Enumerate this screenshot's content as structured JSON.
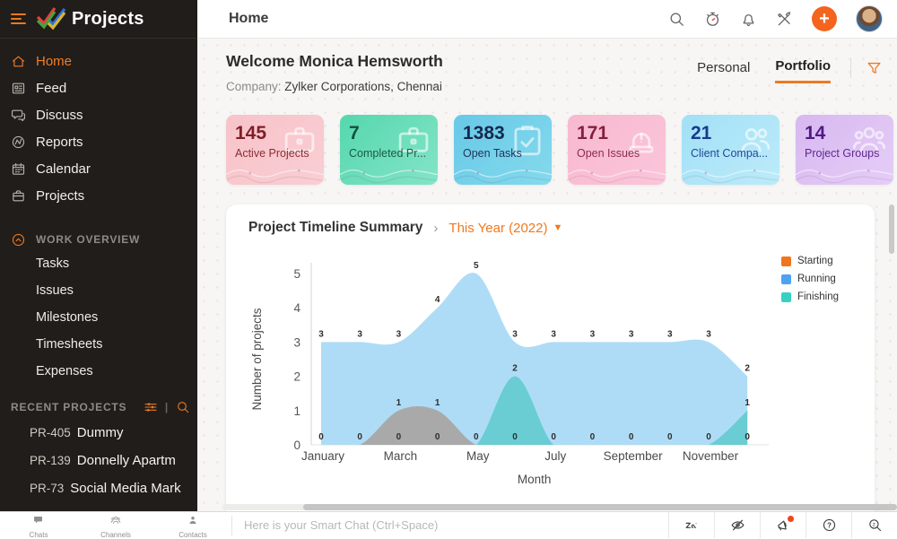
{
  "sidebar": {
    "logo_text": "Projects",
    "nav_items": [
      {
        "label": "Home",
        "icon": "home-icon",
        "active": true
      },
      {
        "label": "Feed",
        "icon": "feed-icon",
        "active": false
      },
      {
        "label": "Discuss",
        "icon": "discuss-icon",
        "active": false
      },
      {
        "label": "Reports",
        "icon": "reports-icon",
        "active": false
      },
      {
        "label": "Calendar",
        "icon": "calendar-icon",
        "active": false
      },
      {
        "label": "Projects",
        "icon": "projects-icon",
        "active": false
      }
    ],
    "work_overview": {
      "title": "WORK OVERVIEW",
      "icon": "chevron-circle-up-icon",
      "items": [
        "Tasks",
        "Issues",
        "Milestones",
        "Timesheets",
        "Expenses"
      ]
    },
    "recent_projects": {
      "title": "RECENT PROJECTS",
      "icons": [
        "sliders-icon",
        "search-icon"
      ],
      "projects": [
        {
          "code": "PR-405",
          "name": "Dummy"
        },
        {
          "code": "PR-139",
          "name": "Donnelly Apartm"
        },
        {
          "code": "PR-73",
          "name": "Social Media Mark"
        }
      ]
    }
  },
  "topbar": {
    "title": "Home",
    "icons": [
      "search-icon",
      "timer-icon",
      "bell-icon",
      "tools-icon"
    ],
    "add_button_label": "+"
  },
  "welcome": {
    "greeting": "Welcome Monica Hemsworth",
    "company_label": "Company:",
    "company_value": " Zylker Corporations, Chennai"
  },
  "view_tabs": {
    "personal": "Personal",
    "portfolio": "Portfolio",
    "selected": "Portfolio",
    "filter_icon": "funnel-icon"
  },
  "stat_cards": [
    {
      "value": "145",
      "label": "Active Projects",
      "icon": "briefcase-icon",
      "bg1": "#f7c3c9",
      "bg2": "#f9ced3",
      "text": "#7e1f26"
    },
    {
      "value": "7",
      "label": "Completed Pr...",
      "icon": "briefcase-icon",
      "bg1": "#55d7ad",
      "bg2": "#84e4c7",
      "text": "#14503a"
    },
    {
      "value": "1383",
      "label": "Open Tasks",
      "icon": "clipboard-check-icon",
      "bg1": "#68c8e7",
      "bg2": "#84daec",
      "text": "#16284f"
    },
    {
      "value": "171",
      "label": "Open Issues",
      "icon": "siren-icon",
      "bg1": "#f8b9cf",
      "bg2": "#fac5da",
      "text": "#831f3f"
    },
    {
      "value": "21",
      "label": "Client Compa...",
      "icon": "people-two-icon",
      "bg1": "#a2e0f6",
      "bg2": "#bcebfa",
      "text": "#173b8c"
    },
    {
      "value": "14",
      "label": "Project Groups",
      "icon": "people-group-icon",
      "bg1": "#d7b8f0",
      "bg2": "#e5cdf7",
      "text": "#531a85"
    }
  ],
  "chart_card": {
    "title": "Project Timeline Summary",
    "breadcrumb_chevron": "›",
    "range_label": "This Year (2022)",
    "range_caret": "▼"
  },
  "chart_data": {
    "type": "area",
    "title": "Project Timeline Summary",
    "x": [
      "January",
      "February",
      "March",
      "April",
      "May",
      "June",
      "July",
      "August",
      "September",
      "October",
      "November",
      "December"
    ],
    "x_tick_labels_shown": [
      "January",
      "March",
      "May",
      "July",
      "September",
      "November"
    ],
    "xlabel": "Month",
    "ylabel": "Number of projects",
    "ylim": [
      0,
      5
    ],
    "yticks": [
      0,
      1,
      2,
      3,
      4,
      5
    ],
    "grid": false,
    "legend_position": "top-right",
    "series": [
      {
        "name": "Starting",
        "legend_color": "#f0751f",
        "area_color": "#a9a9a9",
        "values": [
          0,
          0,
          1,
          1,
          0,
          0,
          0,
          0,
          0,
          0,
          0,
          0
        ]
      },
      {
        "name": "Running",
        "legend_color": "#4da2f2",
        "area_color": "#aedcf6",
        "values": [
          3,
          3,
          3,
          4,
          5,
          3,
          3,
          3,
          3,
          3,
          3,
          2
        ]
      },
      {
        "name": "Finishing",
        "legend_color": "#36d1c0",
        "area_color": "#69cdd3",
        "values": [
          0,
          0,
          0,
          0,
          0,
          2,
          0,
          0,
          0,
          0,
          0,
          1
        ]
      }
    ],
    "draw_order": [
      "Running",
      "Starting",
      "Finishing"
    ]
  },
  "smart_chat": {
    "placeholder": "Here is your Smart Chat (Ctrl+Space)",
    "tools": [
      {
        "label": "Chats",
        "icon": "chat-bubble-icon"
      },
      {
        "label": "Channels",
        "icon": "people-group-icon"
      },
      {
        "label": "Contacts",
        "icon": "person-icon"
      }
    ],
    "right_icons": [
      {
        "icon": "zia-icon",
        "badge": false
      },
      {
        "icon": "eye-off-icon",
        "badge": false
      },
      {
        "icon": "announcement-icon",
        "badge": true
      },
      {
        "icon": "help-icon",
        "badge": false
      },
      {
        "icon": "zia-search-icon",
        "badge": false
      }
    ]
  },
  "colors": {
    "accent_orange": "#f0781e",
    "sidebar_bg": "#211d1a",
    "add_button": "#f4641d",
    "badge_red": "#f4441d"
  }
}
